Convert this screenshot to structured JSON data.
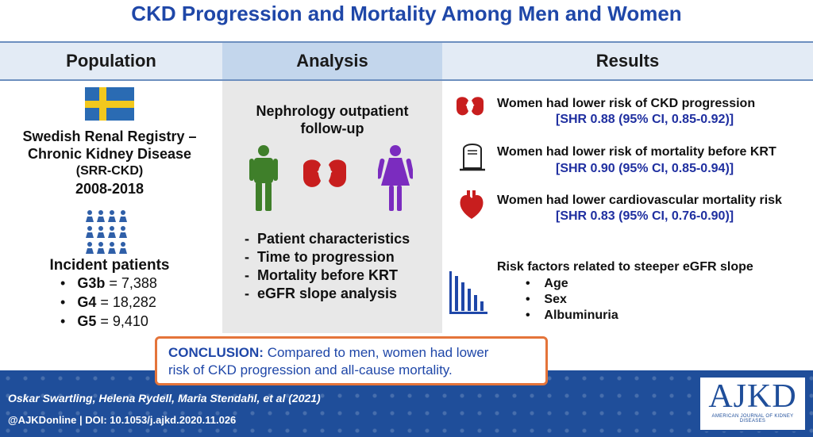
{
  "title": "CKD Progression and Mortality Among Men and Women",
  "headers": {
    "population": "Population",
    "analysis": "Analysis",
    "results": "Results"
  },
  "population": {
    "registry_line1": "Swedish Renal Registry –",
    "registry_line2": "Chronic Kidney Disease",
    "abbrev": "(SRR-CKD)",
    "years": "2008-2018",
    "incident_label": "Incident patients",
    "stages": [
      {
        "stage": "G3b",
        "value": "= 7,388"
      },
      {
        "stage": "G4",
        "value": "= 18,282"
      },
      {
        "stage": "G5",
        "value": "= 9,410"
      }
    ],
    "flag_colors": {
      "blue": "#2a6bb3",
      "yellow": "#f2c81d"
    },
    "people_color": "#2f5fa8"
  },
  "analysis": {
    "heading_line1": "Nephrology outpatient",
    "heading_line2": "follow-up",
    "items": [
      "Patient characteristics",
      "Time to progression",
      "Mortality before KRT",
      "eGFR slope analysis"
    ],
    "icons": [
      "male-figure-icon",
      "kidneys-icon",
      "female-figure-icon"
    ],
    "colors": {
      "male": "#3f7f2a",
      "kidney": "#c81e1e",
      "female": "#7b2cbf"
    }
  },
  "results": {
    "items": [
      {
        "icon": "kidneys-icon",
        "text": "Women had lower risk of CKD progression",
        "ci": "[SHR 0.88 (95% CI, 0.85-0.92)]"
      },
      {
        "icon": "tombstone-icon",
        "text": "Women had lower risk of mortality before KRT",
        "ci": "[SHR 0.90 (95% CI, 0.85-0.94)]"
      },
      {
        "icon": "heart-icon",
        "text": "Women had lower cardiovascular mortality risk",
        "ci": "[SHR 0.83 (95% CI, 0.76-0.90)]"
      }
    ],
    "risk_heading": "Risk factors related to steeper eGFR slope",
    "risk_factors": [
      "Age",
      "Sex",
      "Albuminuria"
    ]
  },
  "conclusion": {
    "label": "CONCLUSION:",
    "text_line1": "Compared to men, women had lower",
    "text_line2": "risk of CKD progression and all-cause mortality."
  },
  "footer": {
    "authors": "Oskar Swartling, Helena Rydell, Maria Stendahl, et al  (2021)",
    "doi": "@AJKDonline | DOI: 10.1053/j.ajkd.2020.11.026",
    "logo": "AJKD",
    "logo_sub": "AMERICAN JOURNAL OF KIDNEY DISEASES"
  }
}
